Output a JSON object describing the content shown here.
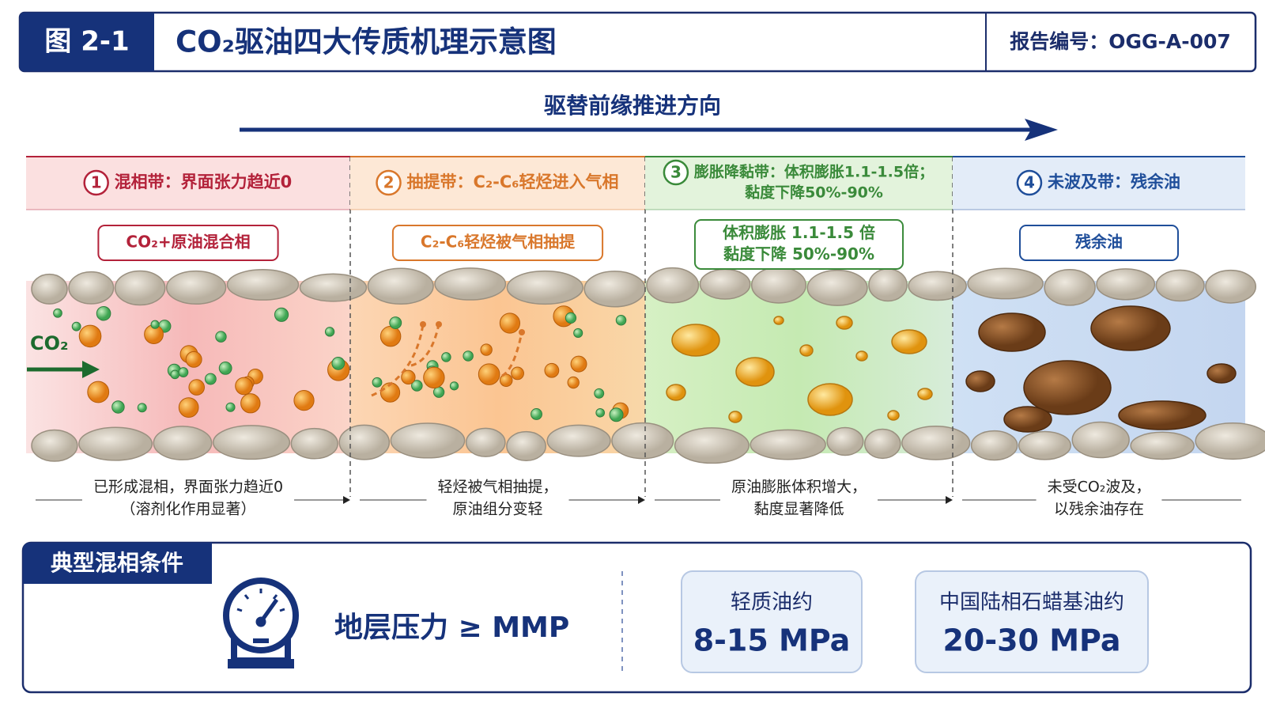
{
  "header": {
    "figure": "图 2-1",
    "title": "CO₂驱油四大传质机理示意图",
    "report": "报告编号：OGG-A-007"
  },
  "direction": "驱替前缘推进方向",
  "inlet": "CO₂",
  "zones": [
    {
      "number": "1",
      "title": [
        "混相带：界面张力趋近0"
      ],
      "badge": [
        "CO₂+原油混合相"
      ],
      "caption": [
        "已形成混相，界面张力趋近0",
        "（溶剂化作用显著）"
      ]
    },
    {
      "number": "2",
      "title": [
        "抽提带：C₂-C₆轻烃进入气相"
      ],
      "badge": [
        "C₂-C₆轻烃被气相抽提"
      ],
      "caption": [
        "轻烃被气相抽提，",
        "原油组分变轻"
      ]
    },
    {
      "number": "3",
      "title": [
        "膨胀降黏带：体积膨胀1.1-1.5倍；",
        "黏度下降50%-90%"
      ],
      "badge": [
        "体积膨胀 1.1-1.5 倍",
        "黏度下降 50%-90%"
      ],
      "caption": [
        "原油膨胀体积增大，",
        "黏度显著降低"
      ]
    },
    {
      "number": "4",
      "title": [
        "未波及带：残余油"
      ],
      "badge": [
        "残余油"
      ],
      "caption": [
        "未受CO₂波及，",
        "以残余油存在"
      ]
    }
  ],
  "conditions": {
    "title": "典型混相条件",
    "pressure": "地层压力 ≥ MMP",
    "cards": [
      {
        "label": "轻质油约",
        "value": "8-15 MPa"
      },
      {
        "label": "中国陆相石蜡基油约",
        "value": "20-30 MPa"
      }
    ]
  }
}
